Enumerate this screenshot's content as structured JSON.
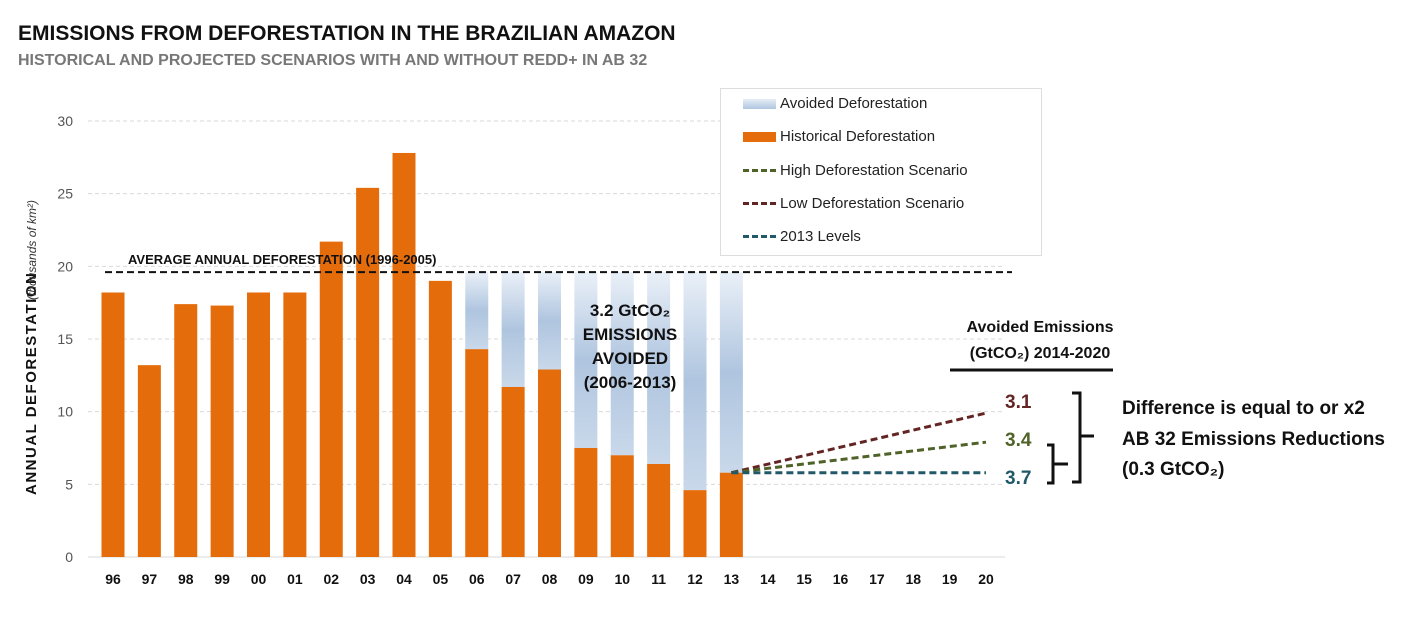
{
  "header": {
    "title": "EMISSIONS FROM DEFORESTATION IN THE BRAZILIAN AMAZON",
    "subtitle": "HISTORICAL AND PROJECTED SCENARIOS WITH AND WITHOUT REDD+ IN AB 32"
  },
  "chart_data": {
    "type": "bar",
    "ylabel": "ANNUAL DEFORESTATION",
    "ylabel_unit": "(thousands of km²)",
    "ylim": [
      0,
      30
    ],
    "yticks": [
      "0",
      "5",
      "10",
      "15",
      "20",
      "25",
      "30"
    ],
    "grid": true,
    "categories": [
      "96",
      "97",
      "98",
      "99",
      "00",
      "01",
      "02",
      "03",
      "04",
      "05",
      "06",
      "07",
      "08",
      "09",
      "10",
      "11",
      "12",
      "13",
      "14",
      "15",
      "16",
      "17",
      "18",
      "19",
      "20"
    ],
    "series": [
      {
        "name": "Historical Deforestation",
        "color": "#E46C0A",
        "values": [
          18.2,
          13.2,
          17.4,
          17.3,
          18.2,
          18.2,
          21.7,
          25.4,
          27.8,
          19.0,
          14.3,
          11.7,
          12.9,
          7.5,
          7.0,
          6.4,
          4.6,
          5.8,
          null,
          null,
          null,
          null,
          null,
          null,
          null
        ]
      },
      {
        "name": "Avoided Deforestation",
        "color": "#B0C6E0",
        "note_range": "stacked up to average",
        "from_category": "06",
        "to_category": "13"
      },
      {
        "name": "High Deforestation Scenario",
        "color": "#4F6228",
        "type": "line",
        "x": [
          "13",
          "20"
        ],
        "values": [
          5.8,
          7.9
        ]
      },
      {
        "name": "Low Deforestation Scenario",
        "color": "#632523",
        "type": "line",
        "x": [
          "13",
          "20"
        ],
        "values": [
          5.8,
          9.9
        ]
      },
      {
        "name": "2013 Levels",
        "color": "#215968",
        "type": "line",
        "x": [
          "13",
          "20"
        ],
        "values": [
          5.8,
          5.8
        ]
      }
    ],
    "average": {
      "label": "AVERAGE ANNUAL DEFORESTATION (1996-2005)",
      "value": 19.6
    },
    "legend_position": "top-right",
    "annotations": {
      "avoided_1": "3.2 GtCO₂",
      "avoided_2": "EMISSIONS",
      "avoided_3": "AVOIDED",
      "avoided_4": "(2006-2013)",
      "emis_title_1": "Avoided Emissions",
      "emis_title_2": "(GtCO₂) 2014-2020",
      "low_value": "3.1",
      "high_value": "3.4",
      "levels_value": "3.7",
      "diff_1": "Difference is equal to or x2",
      "diff_2": "AB 32 Emissions Reductions",
      "diff_3": "(0.3 GtCO₂)"
    }
  }
}
